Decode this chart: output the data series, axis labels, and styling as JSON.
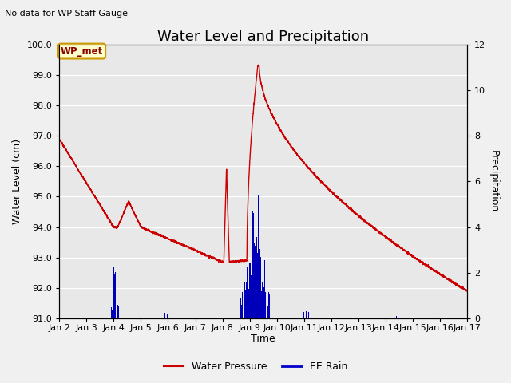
{
  "title": "Water Level and Precipitation",
  "subtitle": "No data for WP Staff Gauge",
  "ylabel_left": "Water Level (cm)",
  "ylabel_right": "Precipitation",
  "xlabel": "Time",
  "ylim_left": [
    91.0,
    100.0
  ],
  "ylim_right": [
    0,
    12
  ],
  "yticks_left": [
    91.0,
    92.0,
    93.0,
    94.0,
    95.0,
    96.0,
    97.0,
    98.0,
    99.0,
    100.0
  ],
  "yticks_right": [
    0,
    2,
    4,
    6,
    8,
    10,
    12
  ],
  "legend_labels": [
    "Water Pressure",
    "EE Rain"
  ],
  "legend_colors": [
    "#cc0000",
    "#0000cc"
  ],
  "wp_met_label": "WP_met",
  "wp_met_bg": "#ffffcc",
  "wp_met_border": "#cc9900",
  "fig_bg_color": "#f0f0f0",
  "plot_bg_color": "#e8e8e8",
  "grid_color": "#ffffff",
  "water_pressure_color": "#cc0000",
  "ee_rain_color": "#0000bb",
  "title_fontsize": 13,
  "axis_fontsize": 9,
  "tick_fontsize": 8,
  "xtick_labels": [
    "Jan 2",
    "Jan 3",
    "Jan 4",
    "Jan 5",
    "Jan 6",
    "Jan 7",
    "Jan 8",
    "Jan 9",
    "Jan 10",
    "Jan 11",
    "Jan 12",
    "Jan 13",
    "Jan 14",
    "Jan 15",
    "Jan 16",
    "Jan 17"
  ]
}
